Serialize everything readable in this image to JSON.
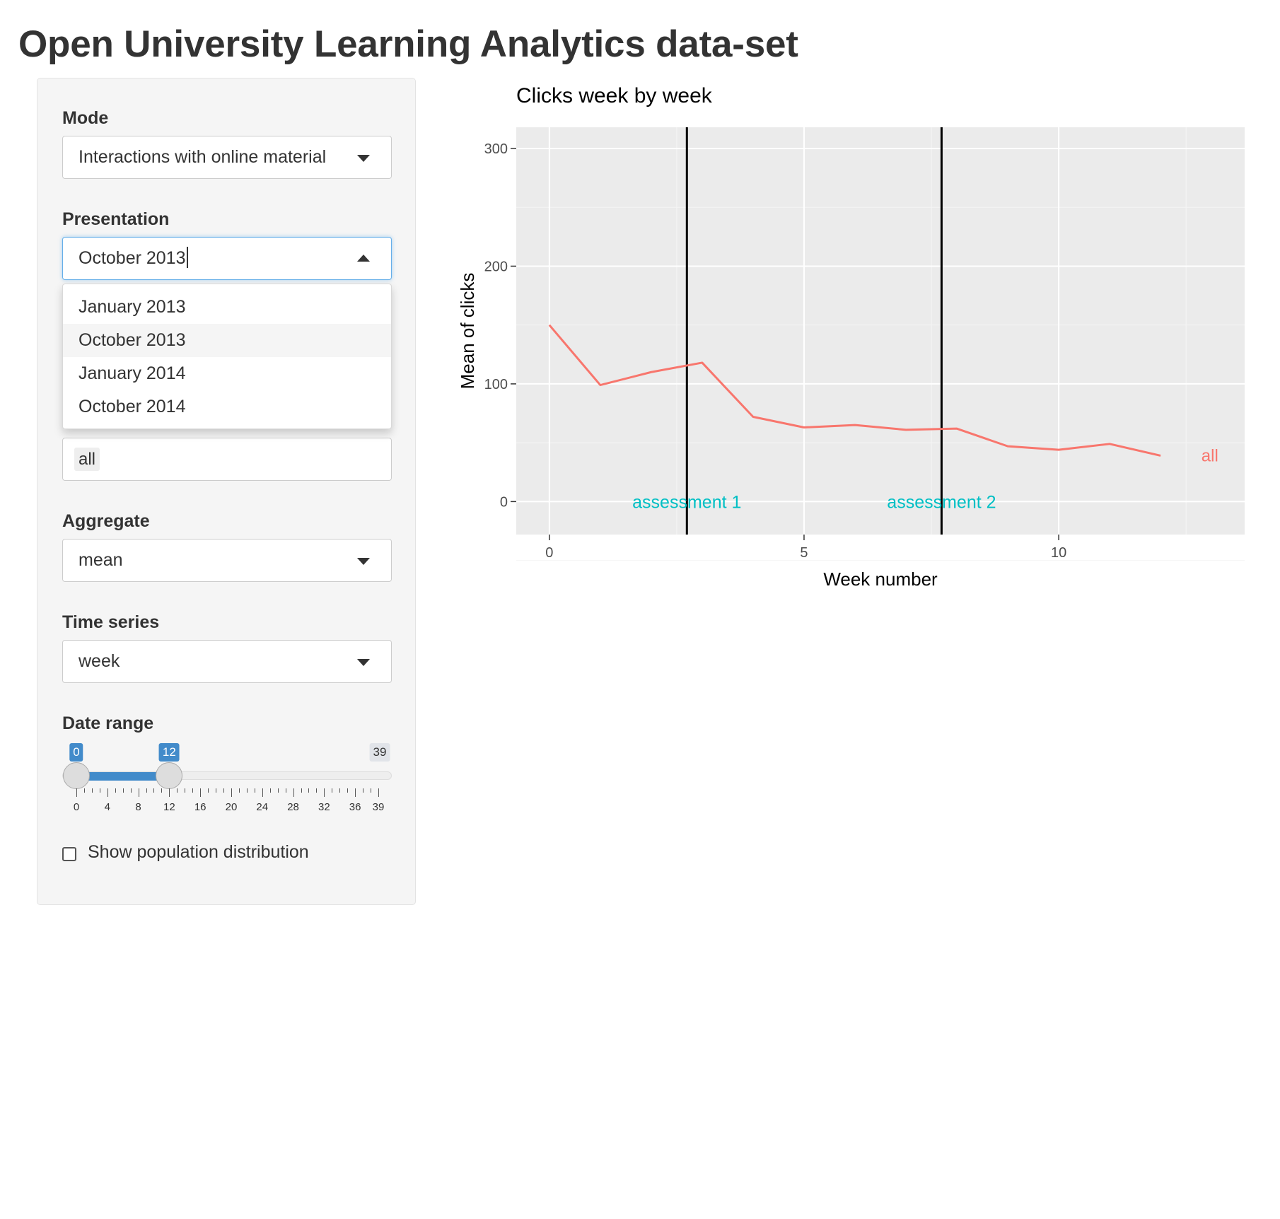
{
  "page": {
    "title": "Open University Learning Analytics data-set"
  },
  "sidebar": {
    "mode": {
      "label": "Mode",
      "value": "Interactions with online material"
    },
    "presentation": {
      "label": "Presentation",
      "value": "October 2013",
      "options": [
        "January 2013",
        "October 2013",
        "January 2014",
        "October 2014"
      ],
      "highlighted": "October 2013"
    },
    "group_filter": {
      "chip": "all"
    },
    "aggregate": {
      "label": "Aggregate",
      "value": "mean"
    },
    "time_series": {
      "label": "Time series",
      "value": "week"
    },
    "date_range": {
      "label": "Date range",
      "min": 0,
      "max": 39,
      "from": 0,
      "to": 12,
      "from_label": "0",
      "to_label": "12",
      "max_label": "39",
      "grid_labels": [
        "0",
        "4",
        "8",
        "12",
        "16",
        "20",
        "24",
        "28",
        "32",
        "36",
        "39"
      ]
    },
    "population": {
      "label": "Show population distribution",
      "checked": false
    }
  },
  "colors": {
    "line": "#f8766d",
    "assessment": "#00bfc4",
    "panel": "#ebebeb",
    "slider": "#428bca"
  },
  "chart_data": {
    "type": "line",
    "title": "Clicks week by week",
    "xlabel": "Week number",
    "ylabel": "Mean of clicks",
    "xlim": [
      -0.65,
      13.65
    ],
    "ylim": [
      -28,
      318
    ],
    "xticks": [
      0,
      5,
      10
    ],
    "yticks": [
      0,
      100,
      200,
      300
    ],
    "grid": true,
    "series": [
      {
        "name": "all",
        "x": [
          0,
          1,
          2,
          3,
          4,
          5,
          6,
          7,
          8,
          9,
          10,
          11,
          12
        ],
        "y": [
          150,
          99,
          110,
          118,
          72,
          63,
          65,
          61,
          62,
          47,
          44,
          49,
          39
        ]
      }
    ],
    "vlines": [
      {
        "x": 2.7,
        "label": "assessment 1"
      },
      {
        "x": 7.7,
        "label": "assessment 2"
      }
    ]
  }
}
